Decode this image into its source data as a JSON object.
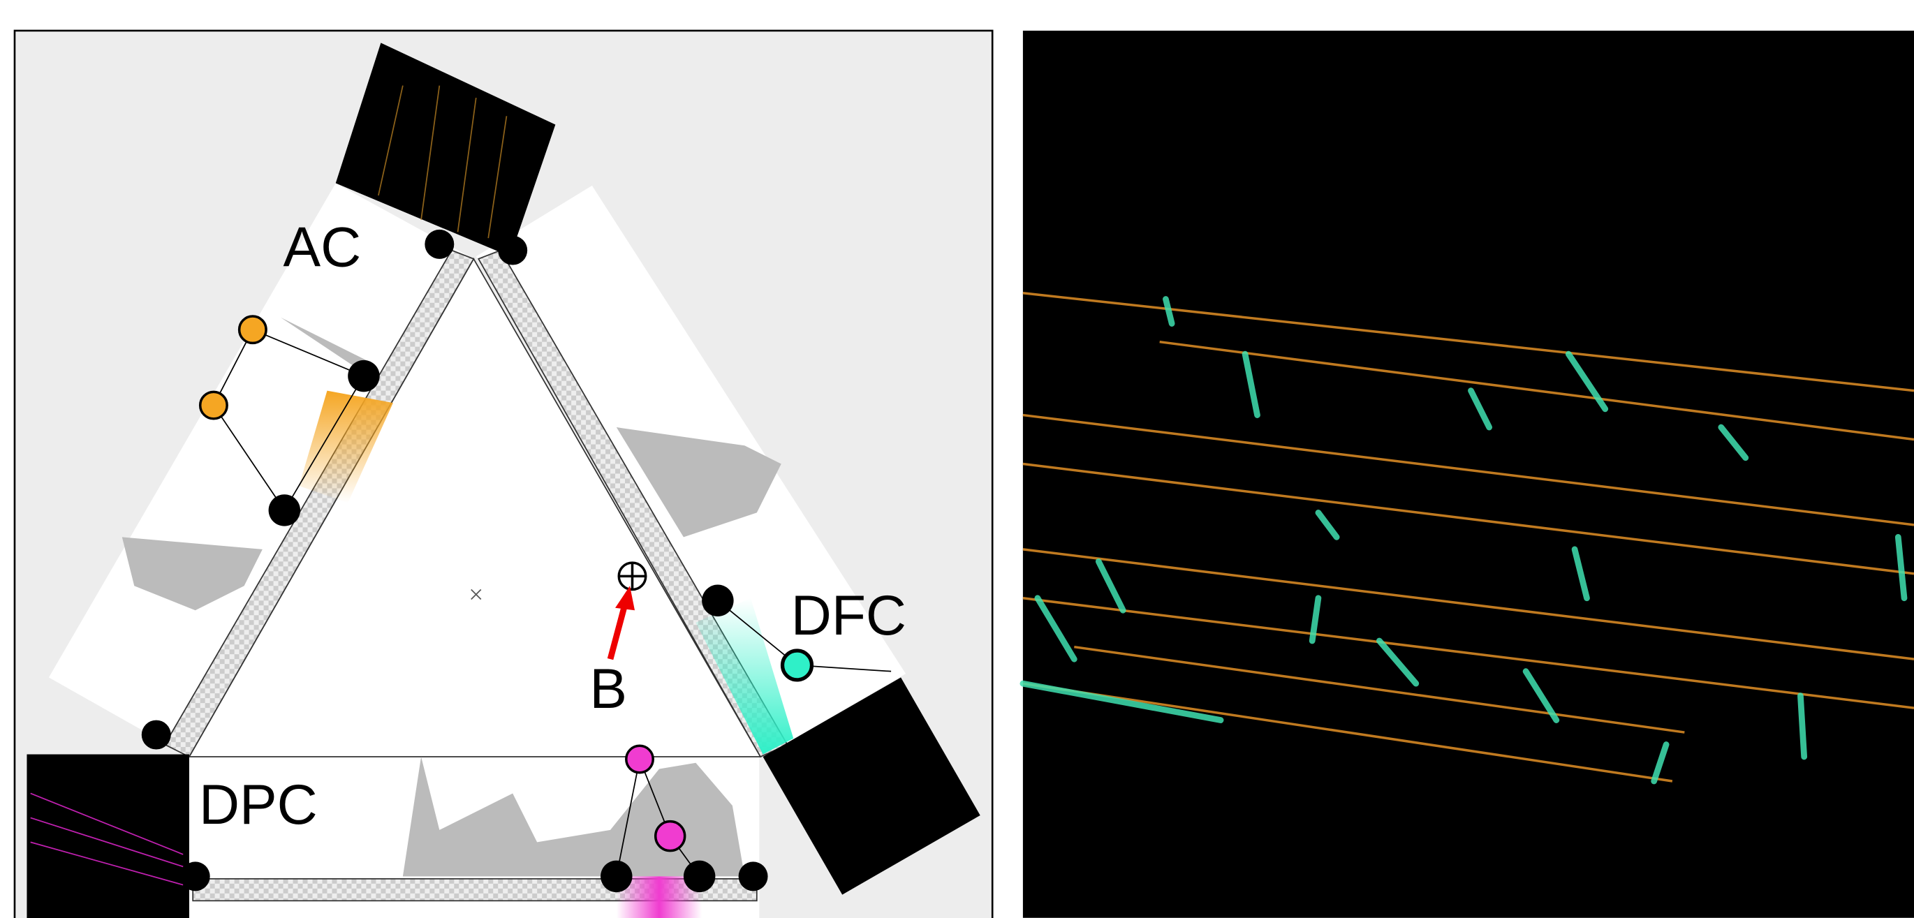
{
  "labels": {
    "ac": "AC",
    "dfc": "DFC",
    "dpc": "DPC",
    "b": "B"
  }
}
